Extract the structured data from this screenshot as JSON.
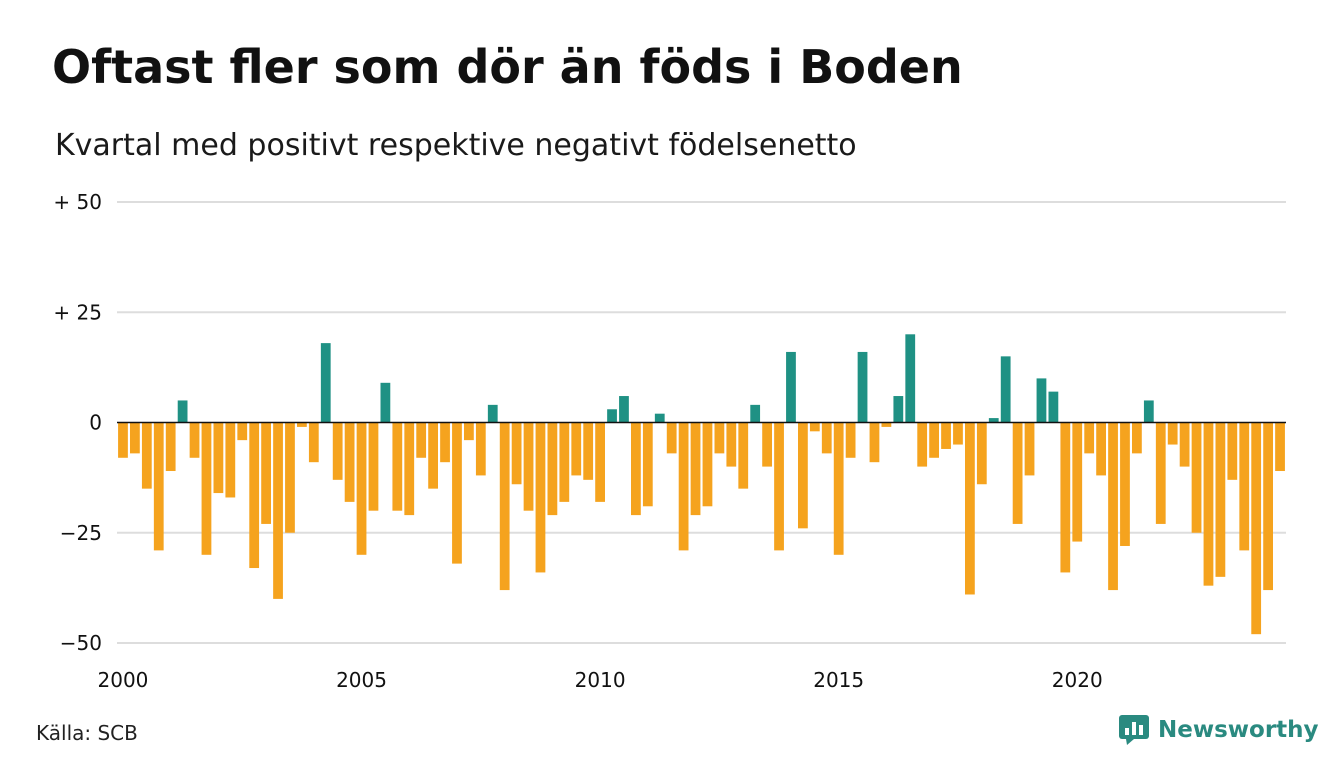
{
  "title": "Oftast fler som dör än föds i Boden",
  "subtitle": "Kvartal med positivt respektive negativt födelsenetto",
  "source": "Källa: SCB",
  "brand": {
    "name": "Newsworthy",
    "icon": "newsworthy-logo-icon",
    "color": "#2a8a80"
  },
  "colors": {
    "positive": "#1f9184",
    "negative": "#f5a31e",
    "grid": "#dddddd",
    "zero": "#111111"
  },
  "chart_data": {
    "type": "bar",
    "title": "Oftast fler som dör än föds i Boden",
    "subtitle": "Kvartal med positivt respektive negativt födelsenetto",
    "xlabel": "",
    "ylabel": "",
    "ylim": [
      -50,
      50
    ],
    "yticks": [
      {
        "value": 50,
        "label": "+ 50"
      },
      {
        "value": 25,
        "label": "+ 25"
      },
      {
        "value": 0,
        "label": "0"
      },
      {
        "value": -25,
        "label": "−25"
      },
      {
        "value": -50,
        "label": "−50"
      }
    ],
    "xticks": [
      "2000",
      "2005",
      "2010",
      "2015",
      "2020"
    ],
    "grid": true,
    "legend": "none",
    "start_year": 2000,
    "frequency": "quarterly",
    "values": [
      -8,
      -7,
      -15,
      -29,
      -11,
      5,
      -8,
      -30,
      -16,
      -17,
      -4,
      -33,
      -23,
      -40,
      -25,
      -1,
      -9,
      18,
      -13,
      -18,
      -30,
      -20,
      9,
      -20,
      -21,
      -8,
      -15,
      -9,
      -32,
      -4,
      -12,
      4,
      -38,
      -14,
      -20,
      -34,
      -21,
      -18,
      -12,
      -13,
      -18,
      3,
      6,
      -21,
      -19,
      2,
      -7,
      -29,
      -21,
      -19,
      -7,
      -10,
      -15,
      4,
      -10,
      -29,
      16,
      -24,
      -2,
      -7,
      -30,
      -8,
      16,
      -9,
      -1,
      6,
      20,
      -10,
      -8,
      -6,
      -5,
      -39,
      -14,
      1,
      15,
      -23,
      -12,
      10,
      7,
      -34,
      -27,
      -7,
      -12,
      -38,
      -28,
      -7,
      5,
      -23,
      -5,
      -10,
      -25,
      -37,
      -35,
      -13,
      -29,
      -48,
      -38,
      -11
    ]
  }
}
